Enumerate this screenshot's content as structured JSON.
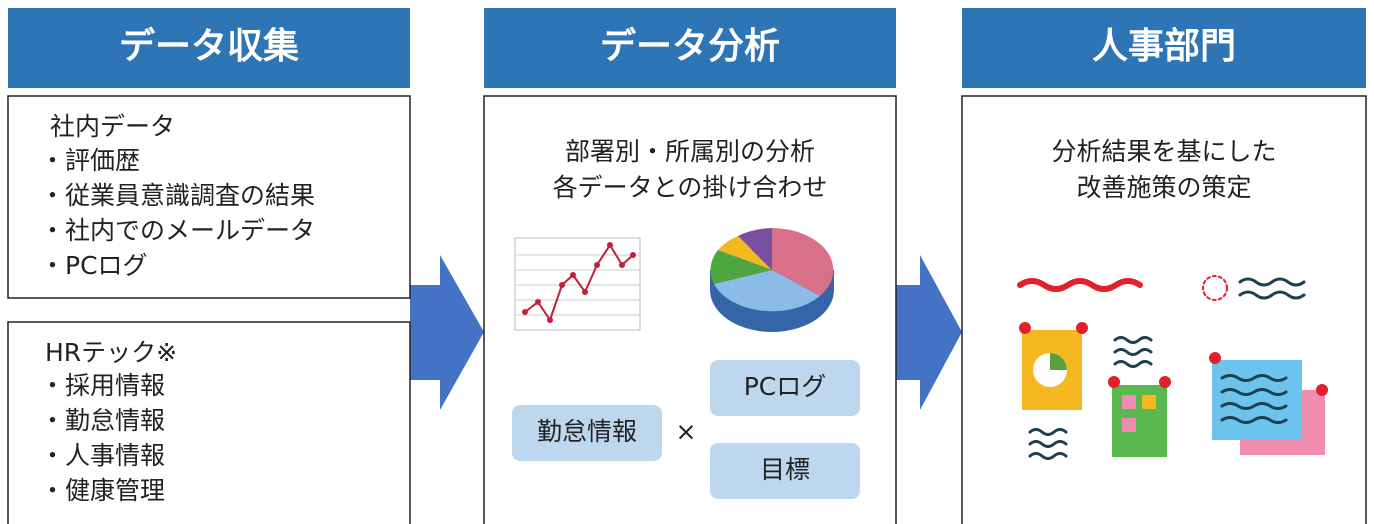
{
  "columns": [
    {
      "title": "データ収集",
      "boxes": [
        {
          "heading": "社内データ",
          "items": [
            "・評価歴",
            "・従業員意識調査の結果",
            "・社内でのメールデータ",
            "・PCログ"
          ]
        },
        {
          "heading": "HRテック※",
          "items": [
            "・採用情報",
            "・勤怠情報",
            "・人事情報",
            "・健康管理"
          ]
        }
      ]
    },
    {
      "title": "データ分析",
      "lines": [
        "部署別・所属別の分析",
        "各データとの掛け合わせ"
      ],
      "tags": [
        "勤怠情報",
        "PCログ",
        "目標"
      ],
      "operator": "×"
    },
    {
      "title": "人事部門",
      "lines": [
        "分析結果を基にした",
        "改善施策の策定"
      ]
    }
  ]
}
